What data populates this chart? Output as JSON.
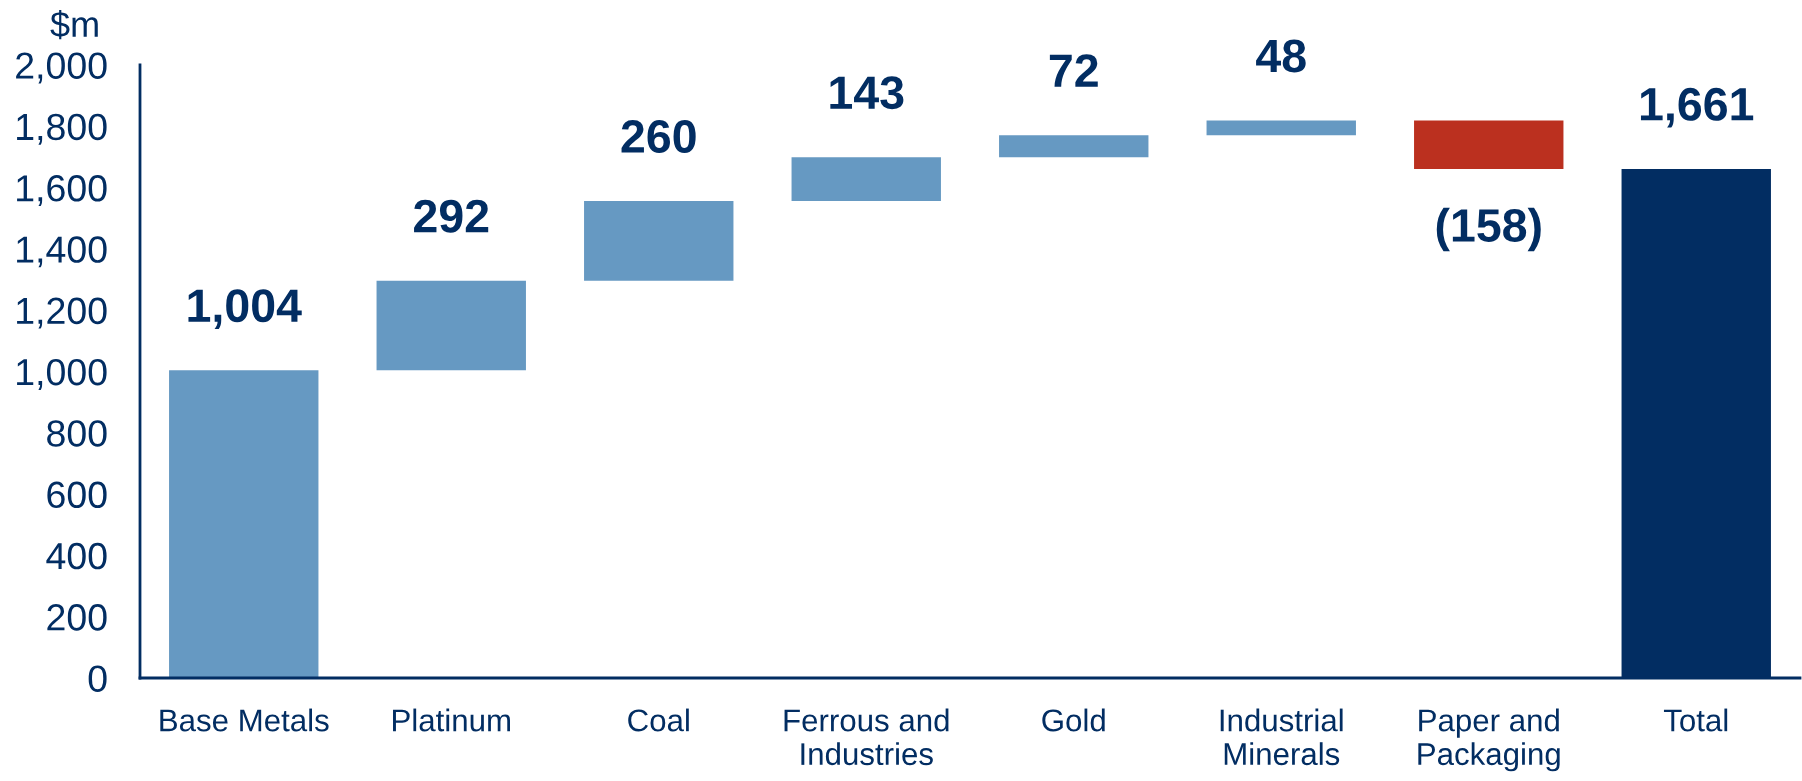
{
  "chart_data": {
    "type": "bar",
    "ylabel": "$m",
    "categories": [
      "Base Metals",
      "Platinum",
      "Coal",
      "Ferrous and\nIndustries",
      "Gold",
      "Industrial\nMinerals",
      "Paper and\nPackaging",
      "Total"
    ],
    "values": [
      1004,
      292,
      260,
      143,
      72,
      48,
      -158,
      1661
    ],
    "base": [
      0,
      1004,
      1296,
      1556,
      1699,
      1771,
      1819,
      0
    ],
    "colors": [
      "#6699c2",
      "#6699c2",
      "#6699c2",
      "#6699c2",
      "#6699c2",
      "#6699c2",
      "#bb301f",
      "#022d62"
    ],
    "value_labels": [
      "1,004",
      "292",
      "260",
      "143",
      "72",
      "48",
      "(158)",
      "1,661"
    ],
    "ylim": [
      0,
      2000
    ],
    "yticks": [
      0,
      200,
      400,
      600,
      800,
      {
        "value": 1000,
        "label": "1,000"
      },
      {
        "value": 1200,
        "label": "1,200"
      },
      {
        "value": 1400,
        "label": "1,400"
      },
      {
        "value": 1600,
        "label": "1,600"
      },
      {
        "value": 1800,
        "label": "1,800"
      },
      {
        "value": 2000,
        "label": "2,000"
      }
    ],
    "grid": false
  }
}
